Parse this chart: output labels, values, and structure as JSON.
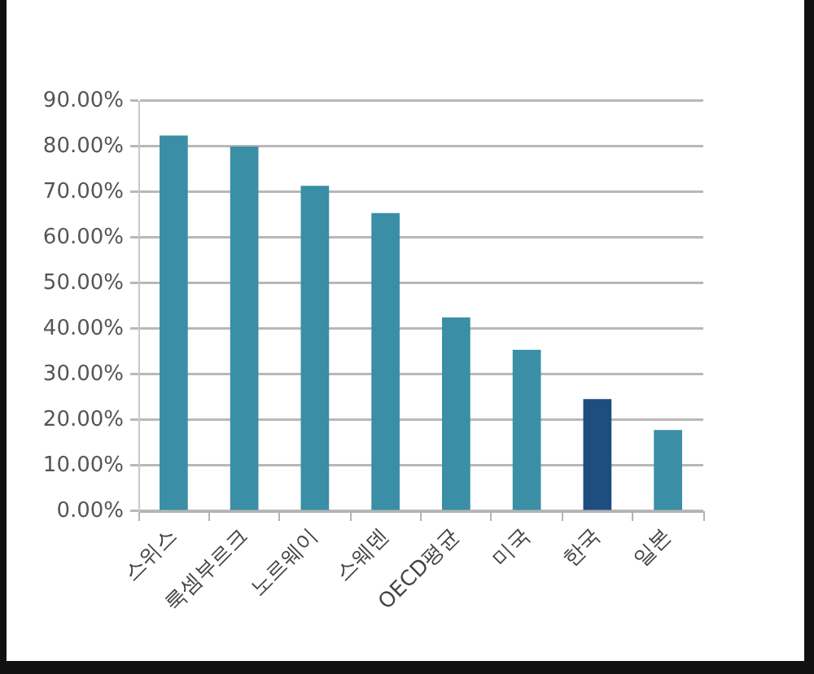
{
  "chart_data": {
    "type": "bar",
    "categories": [
      "스위스",
      "룩셈부르크",
      "노르웨이",
      "스웨덴",
      "OECD평균",
      "미국",
      "한국",
      "일본"
    ],
    "values": [
      82.4,
      80.0,
      71.4,
      65.4,
      42.5,
      35.4,
      24.6,
      17.8
    ],
    "colors": [
      "#3a8ea5",
      "#3a8ea5",
      "#3a8ea5",
      "#3a8ea5",
      "#3a8ea5",
      "#3a8ea5",
      "#1e4d80",
      "#3a8ea5"
    ],
    "ylim": [
      0,
      90
    ],
    "yticks": [
      {
        "value": 0,
        "label": "0.00%"
      },
      {
        "value": 10,
        "label": "10.00%"
      },
      {
        "value": 20,
        "label": "20.00%"
      },
      {
        "value": 30,
        "label": "30.00%"
      },
      {
        "value": 40,
        "label": "40.00%"
      },
      {
        "value": 50,
        "label": "50.00%"
      },
      {
        "value": 60,
        "label": "60.00%"
      },
      {
        "value": 70,
        "label": "70.00%"
      },
      {
        "value": 80,
        "label": "80.00%"
      },
      {
        "value": 90,
        "label": "90.00%"
      }
    ],
    "grid": "y"
  }
}
